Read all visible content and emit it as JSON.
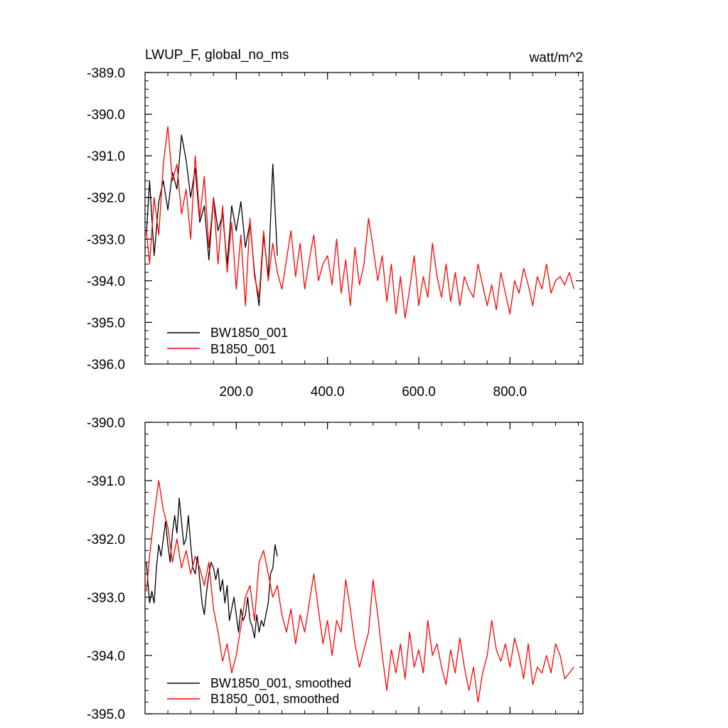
{
  "chart_data": [
    {
      "type": "line",
      "title_left": "LWUP_F, global_no_ms",
      "title_right": "watt/m^2",
      "xlabel": "",
      "ylabel": "",
      "xlim": [
        0,
        960
      ],
      "ylim": [
        -396,
        -389
      ],
      "x_ticks": [
        200,
        400,
        600,
        800
      ],
      "x_tick_labels": [
        "200.0",
        "400.0",
        "600.0",
        "800.0"
      ],
      "y_ticks": [
        -389,
        -390,
        -391,
        -392,
        -393,
        -394,
        -395,
        -396
      ],
      "y_tick_labels": [
        "-389.0",
        "-390.0",
        "-391.0",
        "-392.0",
        "-393.0",
        "-394.0",
        "-395.0",
        "-396.0"
      ],
      "grid": false,
      "legend_position": "bottom-left",
      "colors": {
        "BW1850_001": "#000000",
        "B1850_001": "#ff0000"
      },
      "series": [
        {
          "name": "BW1850_001",
          "color": "#000000",
          "x": [
            3,
            10,
            20,
            30,
            40,
            50,
            60,
            70,
            80,
            90,
            100,
            110,
            120,
            130,
            140,
            150,
            160,
            170,
            180,
            190,
            200,
            210,
            220,
            230,
            240,
            250,
            260,
            270,
            280,
            290
          ],
          "y": [
            -392.9,
            -391.6,
            -393.4,
            -392.1,
            -391.6,
            -392.3,
            -391.4,
            -391.8,
            -390.5,
            -391.1,
            -392.0,
            -391.3,
            -392.6,
            -392.2,
            -393.5,
            -392.0,
            -392.8,
            -392.4,
            -393.6,
            -392.2,
            -392.8,
            -392.1,
            -393.2,
            -392.6,
            -393.8,
            -394.6,
            -392.9,
            -393.9,
            -391.2,
            -393.4
          ]
        },
        {
          "name": "B1850_001",
          "color": "#ff0000",
          "x": [
            3,
            10,
            20,
            30,
            40,
            50,
            60,
            70,
            80,
            90,
            100,
            110,
            120,
            130,
            140,
            150,
            160,
            170,
            180,
            190,
            200,
            210,
            220,
            230,
            240,
            250,
            260,
            270,
            280,
            290,
            300,
            310,
            320,
            330,
            340,
            350,
            360,
            370,
            380,
            390,
            400,
            410,
            420,
            430,
            440,
            450,
            460,
            470,
            480,
            490,
            500,
            510,
            520,
            530,
            540,
            550,
            560,
            570,
            580,
            590,
            600,
            610,
            620,
            630,
            640,
            650,
            660,
            670,
            680,
            690,
            700,
            710,
            720,
            730,
            740,
            750,
            760,
            770,
            780,
            790,
            800,
            810,
            820,
            830,
            840,
            850,
            860,
            870,
            880,
            890,
            900,
            910,
            920,
            930,
            940
          ],
          "y": [
            -392.8,
            -393.6,
            -392.0,
            -392.9,
            -391.2,
            -390.3,
            -391.6,
            -391.2,
            -392.4,
            -391.8,
            -393.0,
            -391.0,
            -392.5,
            -391.5,
            -393.2,
            -392.0,
            -393.6,
            -392.2,
            -393.8,
            -392.6,
            -394.2,
            -392.9,
            -394.6,
            -392.5,
            -393.9,
            -394.4,
            -392.8,
            -394.0,
            -393.1,
            -393.8,
            -394.2,
            -393.5,
            -392.8,
            -393.9,
            -393.1,
            -394.2,
            -393.5,
            -392.9,
            -394.0,
            -393.6,
            -393.4,
            -394.1,
            -393.0,
            -394.3,
            -393.5,
            -394.6,
            -393.2,
            -394.1,
            -393.6,
            -392.5,
            -393.2,
            -394.0,
            -393.4,
            -394.5,
            -393.6,
            -394.8,
            -393.9,
            -394.9,
            -394.2,
            -393.4,
            -394.6,
            -393.9,
            -394.4,
            -393.1,
            -393.9,
            -394.4,
            -393.6,
            -394.5,
            -393.8,
            -394.6,
            -393.9,
            -394.2,
            -394.4,
            -393.6,
            -394.1,
            -394.6,
            -394.1,
            -394.7,
            -393.8,
            -394.3,
            -394.8,
            -394.0,
            -394.3,
            -393.7,
            -394.1,
            -394.6,
            -393.9,
            -394.2,
            -393.6,
            -394.3,
            -394.0,
            -393.9,
            -394.1,
            -393.8,
            -394.2
          ]
        }
      ]
    },
    {
      "type": "line",
      "xlabel": "",
      "ylabel": "",
      "xlim": [
        0,
        960
      ],
      "ylim": [
        -395,
        -390
      ],
      "x_ticks": [
        200,
        400,
        600,
        800
      ],
      "y_ticks": [
        -390,
        -391,
        -392,
        -393,
        -394,
        -395
      ],
      "y_tick_labels": [
        "-390.0",
        "-391.0",
        "-392.0",
        "-393.0",
        "-394.0",
        "-395.0"
      ],
      "grid": false,
      "legend_position": "bottom-left",
      "series": [
        {
          "name": "BW1850_001, smoothed",
          "color": "#000000",
          "x": [
            3,
            10,
            15,
            20,
            25,
            30,
            35,
            40,
            45,
            50,
            55,
            60,
            65,
            70,
            75,
            80,
            85,
            90,
            95,
            100,
            105,
            110,
            115,
            120,
            125,
            130,
            135,
            140,
            145,
            150,
            155,
            160,
            165,
            170,
            175,
            180,
            185,
            190,
            195,
            200,
            205,
            210,
            215,
            220,
            225,
            230,
            235,
            240,
            245,
            250,
            255,
            260,
            265,
            270,
            275,
            280,
            285,
            290
          ],
          "y": [
            -392.4,
            -393.1,
            -392.9,
            -393.1,
            -392.5,
            -392.1,
            -392.3,
            -392.0,
            -391.7,
            -392.1,
            -392.4,
            -391.9,
            -391.6,
            -391.9,
            -391.3,
            -391.7,
            -392.1,
            -392.0,
            -391.6,
            -392.1,
            -392.5,
            -392.6,
            -392.3,
            -392.7,
            -393.1,
            -393.3,
            -392.9,
            -392.6,
            -392.4,
            -392.5,
            -392.7,
            -392.5,
            -392.9,
            -392.7,
            -393.1,
            -392.8,
            -393.4,
            -393.2,
            -393.0,
            -393.3,
            -393.6,
            -393.2,
            -393.4,
            -393.3,
            -393.0,
            -393.4,
            -393.5,
            -393.7,
            -393.3,
            -393.6,
            -393.4,
            -393.5,
            -393.3,
            -393.1,
            -392.6,
            -392.5,
            -392.1,
            -392.3
          ]
        },
        {
          "name": "B1850_001, smoothed",
          "color": "#ff0000",
          "x": [
            3,
            10,
            20,
            30,
            40,
            50,
            60,
            70,
            80,
            90,
            100,
            110,
            120,
            130,
            140,
            150,
            160,
            170,
            180,
            190,
            200,
            210,
            220,
            230,
            240,
            250,
            260,
            270,
            280,
            290,
            300,
            310,
            320,
            330,
            340,
            350,
            360,
            370,
            380,
            390,
            400,
            410,
            420,
            430,
            440,
            450,
            460,
            470,
            480,
            490,
            500,
            510,
            520,
            530,
            540,
            550,
            560,
            570,
            580,
            590,
            600,
            610,
            620,
            630,
            640,
            650,
            660,
            670,
            680,
            690,
            700,
            710,
            720,
            730,
            740,
            750,
            760,
            770,
            780,
            790,
            800,
            810,
            820,
            830,
            840,
            850,
            860,
            870,
            880,
            890,
            900,
            910,
            920,
            930,
            940
          ],
          "y": [
            -392.9,
            -392.3,
            -391.6,
            -391.0,
            -391.5,
            -391.8,
            -392.4,
            -392.0,
            -392.5,
            -392.2,
            -392.6,
            -392.3,
            -392.5,
            -392.8,
            -392.4,
            -393.2,
            -393.6,
            -394.1,
            -393.8,
            -394.3,
            -394.0,
            -393.5,
            -393.0,
            -392.8,
            -393.4,
            -392.4,
            -392.2,
            -392.6,
            -393.0,
            -392.8,
            -393.3,
            -393.6,
            -393.2,
            -393.8,
            -393.3,
            -393.6,
            -393.1,
            -392.6,
            -393.2,
            -393.8,
            -393.4,
            -394.0,
            -393.4,
            -393.6,
            -392.7,
            -393.2,
            -393.8,
            -394.2,
            -393.9,
            -393.6,
            -392.7,
            -393.3,
            -394.0,
            -394.6,
            -393.9,
            -394.3,
            -393.8,
            -394.4,
            -393.6,
            -394.2,
            -393.9,
            -394.3,
            -393.4,
            -394.0,
            -393.8,
            -394.2,
            -394.5,
            -393.9,
            -394.3,
            -393.7,
            -394.2,
            -394.6,
            -394.2,
            -394.8,
            -394.3,
            -394.0,
            -393.4,
            -393.9,
            -394.1,
            -393.8,
            -394.2,
            -393.7,
            -394.0,
            -394.4,
            -393.8,
            -394.5,
            -394.2,
            -394.3,
            -394.0,
            -394.3,
            -393.8,
            -394.0,
            -394.4,
            -394.3,
            -394.2
          ]
        }
      ]
    }
  ]
}
